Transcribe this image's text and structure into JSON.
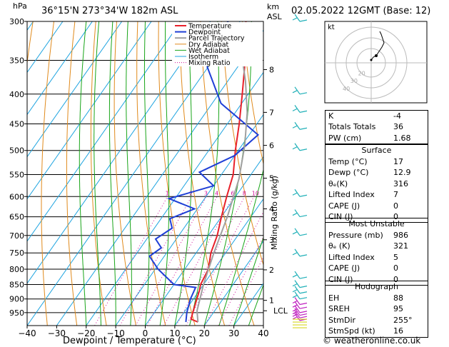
{
  "header": {
    "pressure_unit": "hPa",
    "location": "36°15'N 273°34'W 182m ASL",
    "km_label": "km",
    "asl_label": "ASL",
    "datetime": "02.05.2022 12GMT (Base: 12)"
  },
  "footer": {
    "credit": "© weatheronline.co.uk"
  },
  "colors": {
    "temperature": "#e8202a",
    "dewpoint": "#1f3fd6",
    "parcel": "#a0a0a0",
    "dry_adiabat": "#e08a1c",
    "wet_adiabat": "#19a519",
    "isotherm": "#1ea4e0",
    "mixing_ratio": "#d0109a"
  },
  "legend": [
    "Temperature",
    "Dewpoint",
    "Parcel Trajectory",
    "Dry Adiabat",
    "Wet Adiabat",
    "Isotherm",
    "Mixing Ratio"
  ],
  "chart_data": {
    "type": "line",
    "title": "",
    "xlabel": "Dewpoint / Temperature (°C)",
    "ylabel": "hPa",
    "right_label": "Mixing Ratio (g/kg)",
    "xlim": [
      -40,
      40
    ],
    "ylim": [
      1000,
      300
    ],
    "x_ticks": [
      "−40",
      "−30",
      "−20",
      "−10",
      "0",
      "10",
      "20",
      "30",
      "40"
    ],
    "pressure_ticks": [
      300,
      350,
      400,
      450,
      500,
      550,
      600,
      650,
      700,
      750,
      800,
      850,
      900,
      950
    ],
    "km_ticks": [
      {
        "km": "8",
        "p": 363
      },
      {
        "km": "7",
        "p": 430
      },
      {
        "km": "6",
        "p": 490
      },
      {
        "km": "5",
        "p": 558
      },
      {
        "km": "4",
        "p": 630
      },
      {
        "km": "3",
        "p": 712
      },
      {
        "km": "2",
        "p": 802
      },
      {
        "km": "1",
        "p": 905
      }
    ],
    "lcl": {
      "label": "LCL",
      "p": 943
    },
    "mixing_ratio_labels": [
      "1",
      "2",
      "3",
      "4",
      "6",
      "8",
      "10",
      "15",
      "20",
      "25"
    ],
    "series": [
      {
        "name": "Temperature",
        "points": [
          [
            17,
            986
          ],
          [
            14,
            975
          ],
          [
            13,
            950
          ],
          [
            10,
            870
          ],
          [
            9,
            850
          ],
          [
            8,
            800
          ],
          [
            5,
            750
          ],
          [
            3,
            700
          ],
          [
            0,
            650
          ],
          [
            -3,
            600
          ],
          [
            -6,
            550
          ],
          [
            -11,
            500
          ],
          [
            -16,
            450
          ],
          [
            -22,
            400
          ],
          [
            -29,
            350
          ],
          [
            -38,
            300
          ]
        ]
      },
      {
        "name": "Dewpoint",
        "points": [
          [
            12.9,
            986
          ],
          [
            11,
            950
          ],
          [
            9,
            900
          ],
          [
            8,
            860
          ],
          [
            0,
            850
          ],
          [
            -9,
            800
          ],
          [
            -15,
            760
          ],
          [
            -13,
            735
          ],
          [
            -17,
            710
          ],
          [
            -14,
            680
          ],
          [
            -17,
            655
          ],
          [
            -11,
            630
          ],
          [
            -22,
            605
          ],
          [
            -10,
            575
          ],
          [
            -18,
            545
          ],
          [
            -10,
            510
          ],
          [
            -7,
            470
          ],
          [
            -27,
            415
          ],
          [
            -44,
            345
          ],
          [
            -44,
            300
          ]
        ]
      },
      {
        "name": "Parcel Trajectory",
        "points": [
          [
            17,
            986
          ],
          [
            14,
            943
          ],
          [
            10,
            850
          ],
          [
            6,
            750
          ],
          [
            2,
            650
          ],
          [
            -3,
            560
          ],
          [
            -9,
            490
          ],
          [
            -16,
            430
          ],
          [
            -24,
            380
          ],
          [
            -32,
            340
          ],
          [
            -40,
            305
          ]
        ]
      }
    ],
    "hodograph": {
      "label": "kt",
      "ring_labels": [
        "40",
        "30",
        "20"
      ]
    }
  },
  "indices": [
    {
      "label": "K",
      "value": "-4"
    },
    {
      "label": "Totals Totals",
      "value": "36"
    },
    {
      "label": "PW (cm)",
      "value": "1.68"
    }
  ],
  "surface": {
    "title": "Surface",
    "rows": [
      {
        "label": "Temp (°C)",
        "value": "17"
      },
      {
        "label": "Dewp (°C)",
        "value": "12.9"
      },
      {
        "label": "θₑ(K)",
        "value": "316"
      },
      {
        "label": "Lifted Index",
        "value": "7"
      },
      {
        "label": "CAPE (J)",
        "value": "0"
      },
      {
        "label": "CIN (J)",
        "value": "0"
      }
    ]
  },
  "most_unstable": {
    "title": "Most Unstable",
    "rows": [
      {
        "label": "Pressure (mb)",
        "value": "986"
      },
      {
        "label": "θₑ (K)",
        "value": "321"
      },
      {
        "label": "Lifted Index",
        "value": "5"
      },
      {
        "label": "CAPE (J)",
        "value": "0"
      },
      {
        "label": "CIN (J)",
        "value": "0"
      }
    ]
  },
  "hodograph_box": {
    "title": "Hodograph",
    "rows": [
      {
        "label": "EH",
        "value": "88"
      },
      {
        "label": "SREH",
        "value": "95"
      },
      {
        "label": "StmDir",
        "value": "255°"
      },
      {
        "label": "StmSpd (kt)",
        "value": "16"
      }
    ]
  }
}
